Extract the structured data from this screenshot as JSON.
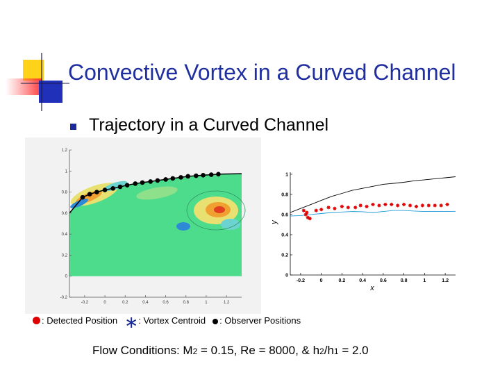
{
  "title": "Convective Vortex in a Curved Channel",
  "bullet": "Trajectory in a Curved Channel",
  "legend": {
    "detected": ": Detected Position",
    "centroid": ": Vortex Centroid",
    "observer": ": Observer Positions"
  },
  "flow": {
    "prefix": "Flow Conditions: M",
    "m_sub": "2",
    "mid1": " = 0.15, Re = 8000, & h",
    "h2_sub": "2",
    "slash": "/h",
    "h1_sub": "1",
    "suffix": " = 2.0"
  },
  "colors": {
    "title": "#1f2fa0",
    "field_background": "#4ddc8c",
    "trajectory_points": "#e00000",
    "lower_wall": "#1e9ad6",
    "upper_wall": "#000000"
  },
  "chart_data": [
    {
      "type": "heatmap",
      "x_ticks": [
        "-0.2",
        "0",
        "0.2",
        "0.4",
        "0.6",
        "0.8",
        "1",
        "1.2"
      ],
      "y_ticks": [
        "-0.2",
        "0",
        "0.2",
        "0.4",
        "0.6",
        "0.8",
        "1",
        "1.2"
      ],
      "xlim": [
        -0.35,
        1.35
      ],
      "ylim": [
        -0.2,
        1.2
      ],
      "observer_positions": {
        "x": [
          -0.22,
          -0.15,
          -0.08,
          0.0,
          0.08,
          0.15,
          0.22,
          0.3,
          0.37,
          0.45,
          0.52,
          0.6,
          0.67,
          0.75,
          0.82,
          0.9,
          0.97,
          1.05,
          1.12
        ],
        "y": [
          0.75,
          0.78,
          0.8,
          0.82,
          0.835,
          0.85,
          0.865,
          0.88,
          0.89,
          0.9,
          0.91,
          0.92,
          0.93,
          0.94,
          0.95,
          0.955,
          0.96,
          0.965,
          0.97
        ]
      }
    },
    {
      "type": "scatter",
      "xlabel": "x",
      "ylabel": "y",
      "x_ticks": [
        "-0.2",
        "0",
        "0.2",
        "0.4",
        "0.6",
        "0.8",
        "1",
        "1.2"
      ],
      "y_ticks": [
        "0",
        "0.2",
        "0.4",
        "0.6",
        "0.8",
        "1"
      ],
      "xlim": [
        -0.3,
        1.3
      ],
      "ylim": [
        0,
        1.02
      ],
      "series": [
        {
          "x": [
            -0.17,
            -0.15,
            -0.13,
            -0.11,
            -0.14,
            -0.05,
            0.0,
            0.07,
            0.13,
            0.2,
            0.26,
            0.33,
            0.38,
            0.44,
            0.5,
            0.56,
            0.62,
            0.68,
            0.74,
            0.8,
            0.86,
            0.92,
            0.98,
            1.04,
            1.1,
            1.16,
            1.22
          ],
          "y": [
            0.64,
            0.6,
            0.57,
            0.56,
            0.62,
            0.64,
            0.65,
            0.67,
            0.66,
            0.68,
            0.67,
            0.67,
            0.69,
            0.68,
            0.7,
            0.69,
            0.7,
            0.7,
            0.69,
            0.7,
            0.69,
            0.68,
            0.69,
            0.69,
            0.69,
            0.69,
            0.7
          ]
        },
        {
          "x": [
            -0.3,
            -0.2,
            -0.1,
            0.0,
            0.1,
            0.2,
            0.3,
            0.4,
            0.5,
            0.6,
            0.7,
            0.8,
            0.9,
            1.0,
            1.1,
            1.2,
            1.3
          ],
          "y": [
            0.585,
            0.59,
            0.6,
            0.61,
            0.62,
            0.625,
            0.63,
            0.628,
            0.62,
            0.63,
            0.64,
            0.64,
            0.635,
            0.63,
            0.63,
            0.63,
            0.632
          ]
        },
        {
          "x": [
            -0.3,
            -0.2,
            -0.1,
            0.0,
            0.1,
            0.2,
            0.3,
            0.4,
            0.5,
            0.6,
            0.7,
            0.8,
            0.9,
            1.0,
            1.1,
            1.2,
            1.3
          ],
          "y": [
            0.62,
            0.66,
            0.7,
            0.74,
            0.78,
            0.81,
            0.84,
            0.86,
            0.88,
            0.9,
            0.91,
            0.92,
            0.935,
            0.945,
            0.955,
            0.965,
            0.975
          ]
        }
      ]
    }
  ]
}
